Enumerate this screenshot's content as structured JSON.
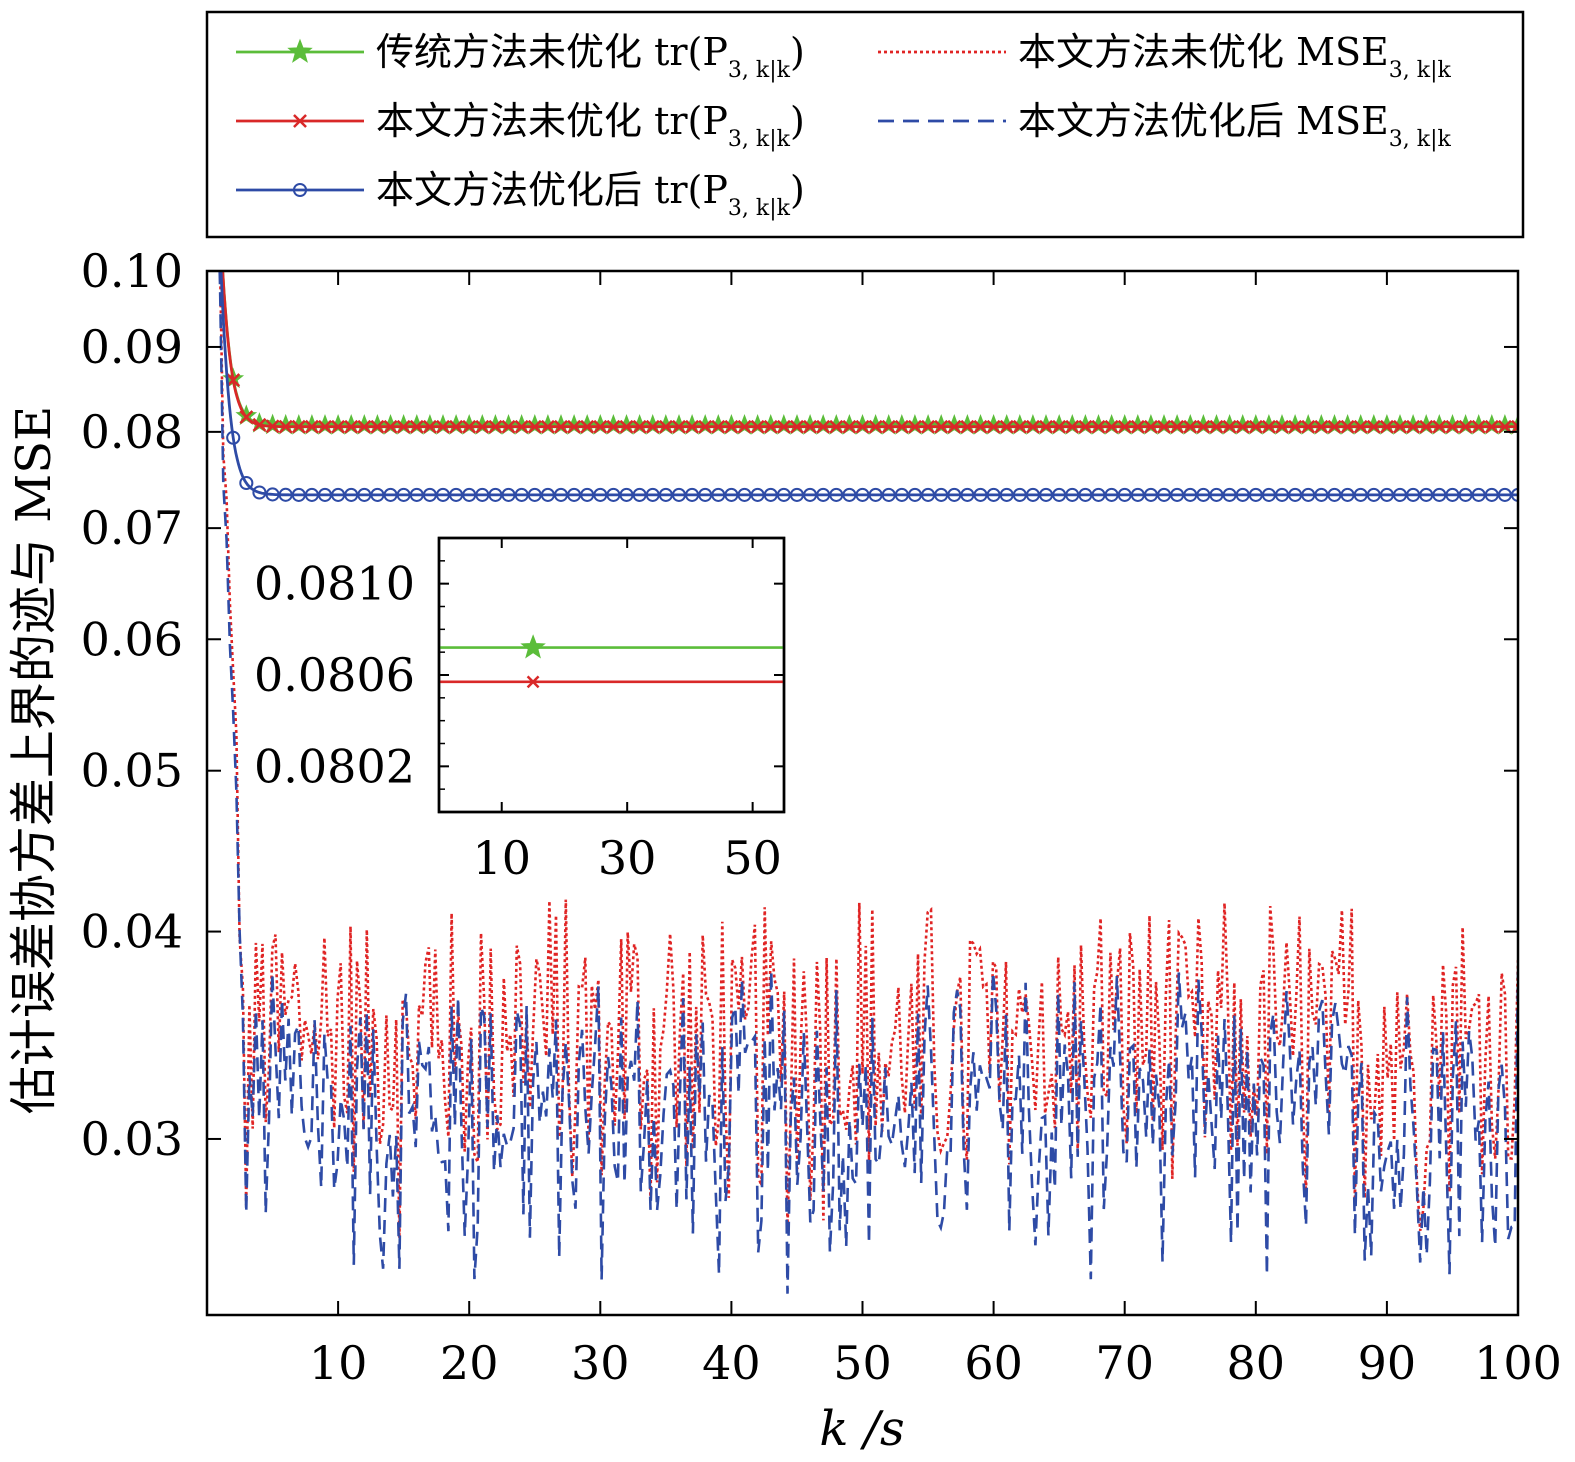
{
  "chart_data": {
    "type": "line",
    "xlabel": "k /s",
    "ylabel": "估计误差协方差上界的迹与 MSE",
    "xlim": [
      0,
      100
    ],
    "ylim": [
      0.0235,
      0.1
    ],
    "y_scale": "log",
    "grid": false,
    "legend_position": "top (outside plot)",
    "x_ticks": [
      10,
      20,
      30,
      40,
      50,
      60,
      70,
      80,
      90,
      100
    ],
    "x_tick_labels": [
      "10",
      "20",
      "30",
      "40",
      "50",
      "60",
      "70",
      "80",
      "90",
      "100"
    ],
    "y_ticks": [
      0.03,
      0.04,
      0.05,
      0.06,
      0.07,
      0.08,
      0.09,
      0.1
    ],
    "y_tick_labels": [
      "0.03",
      "0.04",
      "0.05",
      "0.06",
      "0.07",
      "0.08",
      "0.09",
      "0.10"
    ],
    "series": [
      {
        "legend_label": "传统方法未优化",
        "legend_math": "tr(P",
        "legend_sub": "3, k|k",
        "legend_close": ")",
        "color": "#5bbd3a",
        "style": "solid",
        "marker": "star",
        "start_value": 0.14,
        "steady_value": 0.08072,
        "decay": 1.6
      },
      {
        "legend_label": "本文方法未优化",
        "legend_math": "tr(P",
        "legend_sub": "3, k|k",
        "legend_close": ")",
        "color": "#d92828",
        "style": "solid",
        "marker": "x",
        "start_value": 0.14,
        "steady_value": 0.08057,
        "decay": 1.6
      },
      {
        "legend_label": "本文方法优化后",
        "legend_math": "tr(P",
        "legend_sub": "3, k|k",
        "legend_close": ")",
        "color": "#2e4ba6",
        "style": "solid",
        "marker": "circle",
        "start_value": 0.14,
        "steady_value": 0.0733,
        "decay": 1.6
      },
      {
        "legend_label": "本文方法未优化",
        "legend_math": "MSE",
        "legend_sub": "3, k|k",
        "legend_close": "",
        "color": "#e02424",
        "style": "dotted",
        "marker": "none",
        "noisy_mean": 0.0336,
        "noisy_range": [
          0.026,
          0.043
        ]
      },
      {
        "legend_label": "本文方法优化后",
        "legend_math": "MSE",
        "legend_sub": "3, k|k",
        "legend_close": "",
        "color": "#2e4ba6",
        "style": "dashed",
        "marker": "none",
        "noisy_mean": 0.031,
        "noisy_range": [
          0.0235,
          0.039
        ]
      }
    ],
    "inset": {
      "xlim": [
        0,
        55
      ],
      "ylim": [
        0.08,
        0.0812
      ],
      "x_ticks": [
        10,
        30,
        50
      ],
      "x_tick_labels": [
        "10",
        "30",
        "50"
      ],
      "y_ticks": [
        0.0802,
        0.0806,
        0.081
      ],
      "y_tick_labels": [
        "0.0802",
        "0.0806",
        "0.0810"
      ],
      "lines": [
        {
          "color": "#5bbd3a",
          "value": 0.08072,
          "marker": "star",
          "marker_x": 15
        },
        {
          "color": "#d92828",
          "value": 0.08057,
          "marker": "x",
          "marker_x": 15
        }
      ]
    }
  }
}
